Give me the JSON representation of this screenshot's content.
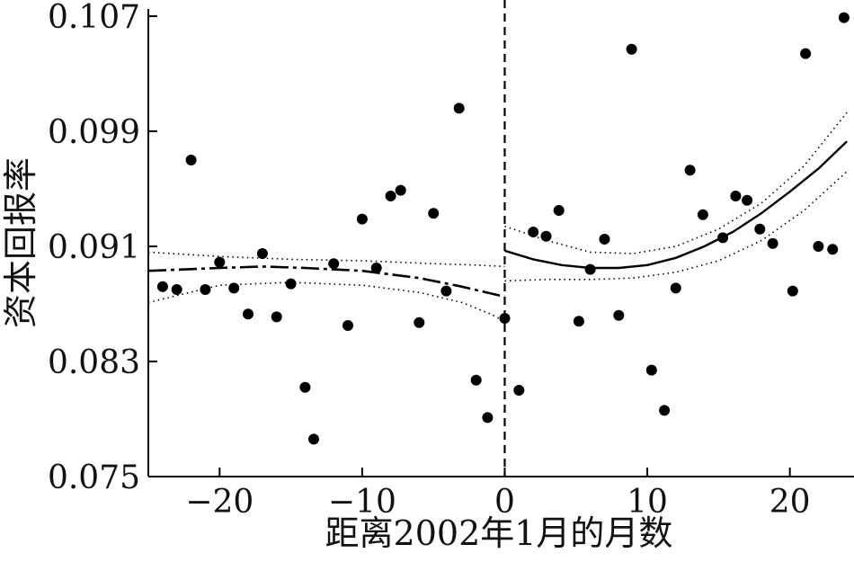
{
  "chart_data": {
    "type": "scatter",
    "title": "",
    "xlabel": "距离2002年1月的月数",
    "ylabel": "资本回报率",
    "xlim": [
      -25,
      24.5
    ],
    "ylim": [
      0.075,
      0.107
    ],
    "x_ticks": [
      {
        "value": -20,
        "label": "−20"
      },
      {
        "value": -10,
        "label": "−10"
      },
      {
        "value": 0,
        "label": "0"
      },
      {
        "value": 10,
        "label": "10"
      },
      {
        "value": 20,
        "label": "20"
      }
    ],
    "y_ticks": [
      {
        "value": 0.075,
        "label": "0.075"
      },
      {
        "value": 0.083,
        "label": "0.083"
      },
      {
        "value": 0.091,
        "label": "0.091"
      },
      {
        "value": 0.099,
        "label": "0.099"
      },
      {
        "value": 0.107,
        "label": "0.107"
      }
    ],
    "cutoff_x": 0,
    "grid": false,
    "colors": {
      "points": "#000000",
      "lines": "#000000",
      "axes": "#000000"
    },
    "scatter": [
      [
        -24,
        0.0882
      ],
      [
        -23,
        0.088
      ],
      [
        -22,
        0.097
      ],
      [
        -21,
        0.088
      ],
      [
        -20,
        0.0899
      ],
      [
        -19,
        0.0881
      ],
      [
        -18,
        0.0863
      ],
      [
        -17,
        0.0905
      ],
      [
        -16,
        0.0861
      ],
      [
        -15,
        0.0884
      ],
      [
        -14,
        0.0812
      ],
      [
        -13.4,
        0.0776
      ],
      [
        -12,
        0.0898
      ],
      [
        -11,
        0.0855
      ],
      [
        -10,
        0.0929
      ],
      [
        -9,
        0.0895
      ],
      [
        -8,
        0.0945
      ],
      [
        -7.3,
        0.0949
      ],
      [
        -6,
        0.0857
      ],
      [
        -5,
        0.0933
      ],
      [
        -4.1,
        0.0879
      ],
      [
        -3.2,
        0.1006
      ],
      [
        -2,
        0.0817
      ],
      [
        -1.2,
        0.0791
      ],
      [
        0,
        0.086
      ],
      [
        1,
        0.081
      ],
      [
        2,
        0.092
      ],
      [
        2.9,
        0.0917
      ],
      [
        3.8,
        0.0935
      ],
      [
        5.2,
        0.0858
      ],
      [
        6,
        0.0894
      ],
      [
        7,
        0.0915
      ],
      [
        8,
        0.0862
      ],
      [
        8.9,
        0.1047
      ],
      [
        10.3,
        0.0824
      ],
      [
        11.2,
        0.0796
      ],
      [
        12,
        0.0881
      ],
      [
        13,
        0.0963
      ],
      [
        13.9,
        0.0932
      ],
      [
        15.3,
        0.0916
      ],
      [
        16.2,
        0.0945
      ],
      [
        17,
        0.0942
      ],
      [
        17.9,
        0.0922
      ],
      [
        18.8,
        0.0912
      ],
      [
        20.2,
        0.0879
      ],
      [
        21.1,
        0.1044
      ],
      [
        22,
        0.091
      ],
      [
        23,
        0.0908
      ],
      [
        23.8,
        0.1069
      ]
    ],
    "series": [
      {
        "style": "dashed",
        "side": "left",
        "points": [
          [
            -25,
            0.0893
          ],
          [
            -20,
            0.0895
          ],
          [
            -17,
            0.0896
          ],
          [
            -14,
            0.0895
          ],
          [
            -10,
            0.0893
          ],
          [
            -6,
            0.0888
          ],
          [
            -3,
            0.0882
          ],
          [
            0,
            0.0875
          ]
        ]
      },
      {
        "style": "dotted",
        "side": "left",
        "points": [
          [
            -25,
            0.0906
          ],
          [
            -20,
            0.0903
          ],
          [
            -15,
            0.0901
          ],
          [
            -10,
            0.09
          ],
          [
            -5,
            0.0898
          ],
          [
            -2,
            0.0897
          ],
          [
            0,
            0.0896
          ]
        ]
      },
      {
        "style": "dotted",
        "side": "left",
        "points": [
          [
            -25,
            0.0871
          ],
          [
            -20,
            0.0883
          ],
          [
            -15,
            0.0885
          ],
          [
            -10,
            0.0883
          ],
          [
            -6,
            0.0878
          ],
          [
            -3,
            0.0871
          ],
          [
            -1,
            0.0863
          ],
          [
            0,
            0.0858
          ]
        ]
      },
      {
        "style": "solid",
        "side": "right",
        "points": [
          [
            0,
            0.0907
          ],
          [
            2,
            0.0901
          ],
          [
            4,
            0.0897
          ],
          [
            6,
            0.0895
          ],
          [
            8,
            0.0895
          ],
          [
            10,
            0.0897
          ],
          [
            12,
            0.0902
          ],
          [
            14,
            0.091
          ],
          [
            16,
            0.092
          ],
          [
            18,
            0.0933
          ],
          [
            20,
            0.0948
          ],
          [
            22,
            0.0964
          ],
          [
            24,
            0.0983
          ]
        ]
      },
      {
        "style": "dotted",
        "side": "right",
        "points": [
          [
            0,
            0.0924
          ],
          [
            3,
            0.0914
          ],
          [
            6,
            0.0906
          ],
          [
            9,
            0.0905
          ],
          [
            12,
            0.091
          ],
          [
            15,
            0.0922
          ],
          [
            18,
            0.094
          ],
          [
            21,
            0.0966
          ],
          [
            24,
            0.1003
          ]
        ]
      },
      {
        "style": "dotted",
        "side": "right",
        "points": [
          [
            0,
            0.0886
          ],
          [
            3,
            0.0887
          ],
          [
            6,
            0.0887
          ],
          [
            9,
            0.0888
          ],
          [
            12,
            0.0892
          ],
          [
            15,
            0.09
          ],
          [
            18,
            0.0914
          ],
          [
            21,
            0.0935
          ],
          [
            24,
            0.0962
          ]
        ]
      }
    ]
  }
}
